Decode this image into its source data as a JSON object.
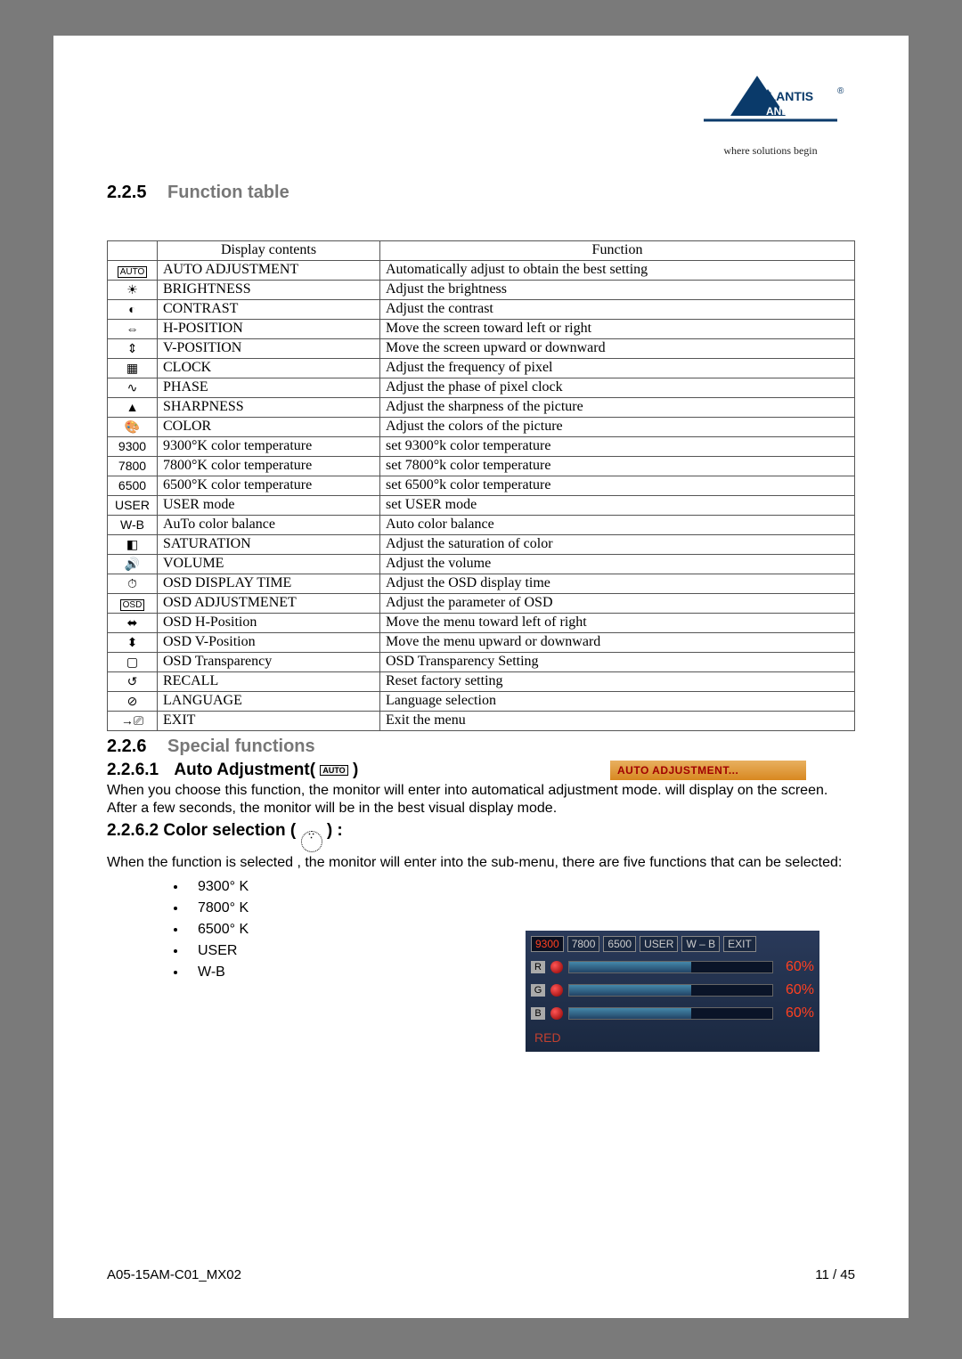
{
  "logo": {
    "brand": "ATLANTIS",
    "sub": "LAND",
    "tagline": "where solutions begin",
    "color": "#0a3a6a"
  },
  "section225": {
    "num": "2.2.5",
    "title": "Function table"
  },
  "table": {
    "header": {
      "icon": "",
      "display": "Display contents",
      "func": "Function"
    },
    "rows": [
      {
        "iconType": "boxed",
        "iconText": "AUTO",
        "display": "AUTO ADJUSTMENT",
        "func": "Automatically adjust to obtain the best setting"
      },
      {
        "iconType": "glyph",
        "iconText": "☀",
        "display": "BRIGHTNESS",
        "func": "Adjust the brightness"
      },
      {
        "iconType": "glyph",
        "iconText": "◐",
        "display": "CONTRAST",
        "func": "Adjust the contrast"
      },
      {
        "iconType": "glyph",
        "iconText": "⇔",
        "display": "H-POSITION",
        "func": "Move the screen toward left or right"
      },
      {
        "iconType": "glyph",
        "iconText": "⇕",
        "display": "V-POSITION",
        "func": "Move the screen upward or downward"
      },
      {
        "iconType": "glyph",
        "iconText": "▦",
        "display": "CLOCK",
        "func": "Adjust the frequency of pixel"
      },
      {
        "iconType": "glyph",
        "iconText": "∿",
        "display": "PHASE",
        "func": "Adjust the phase of pixel clock"
      },
      {
        "iconType": "glyph",
        "iconText": "▲",
        "display": "SHARPNESS",
        "func": "Adjust the sharpness of the picture"
      },
      {
        "iconType": "glyph",
        "iconText": "🎨",
        "display": "COLOR",
        "func": "Adjust the colors of the picture"
      },
      {
        "iconType": "text",
        "iconText": "9300",
        "display": "9300°K color temperature",
        "func": "set 9300°k color temperature"
      },
      {
        "iconType": "text",
        "iconText": "7800",
        "display": "7800°K color temperature",
        "func": "set 7800°k color temperature"
      },
      {
        "iconType": "text",
        "iconText": "6500",
        "display": "6500°K color temperature",
        "func": "set 6500°k color temperature"
      },
      {
        "iconType": "text",
        "iconText": "USER",
        "display": "USER mode",
        "func": "set USER mode"
      },
      {
        "iconType": "text",
        "iconText": "W-B",
        "display": "AuTo color balance",
        "func": "Auto color balance"
      },
      {
        "iconType": "glyph",
        "iconText": "◧",
        "display": "SATURATION",
        "func": "Adjust the saturation of color"
      },
      {
        "iconType": "glyph",
        "iconText": "🔊",
        "display": "VOLUME",
        "func": "Adjust the volume"
      },
      {
        "iconType": "glyph",
        "iconText": "⏱",
        "display": "OSD DISPLAY TIME",
        "func": "Adjust the OSD display time"
      },
      {
        "iconType": "boxed",
        "iconText": "OSD",
        "display": "OSD ADJUSTMENET",
        "func": "Adjust the parameter of OSD"
      },
      {
        "iconType": "glyph",
        "iconText": "⬌",
        "display": "OSD H-Position",
        "func": "Move the menu toward left of right"
      },
      {
        "iconType": "glyph",
        "iconText": "⬍",
        "display": "OSD V-Position",
        "func": "Move the menu upward or downward"
      },
      {
        "iconType": "glyph",
        "iconText": "▢",
        "display": "OSD Transparency",
        "func": "OSD Transparency Setting"
      },
      {
        "iconType": "glyph",
        "iconText": "↺",
        "display": "RECALL",
        "func": "Reset factory setting"
      },
      {
        "iconType": "glyph",
        "iconText": "⊘",
        "display": "LANGUAGE",
        "func": "Language selection"
      },
      {
        "iconType": "glyph",
        "iconText": "→⎚",
        "display": "EXIT",
        "func": "Exit the menu"
      }
    ]
  },
  "section226": {
    "num": "2.2.6",
    "title": "Special functions"
  },
  "sub2261": {
    "num": "2.2.6.1",
    "title": "Auto Adjustment(",
    "titleEnd": ")",
    "bar": "AUTO ADJUSTMENT...",
    "text": "When you choose this function, the monitor will enter into automatical adjustment mode.  will display on the screen. After a few seconds, the monitor will be in the best visual display mode."
  },
  "sub2262": {
    "num": "2.2.6.2",
    "title": "Color selection (",
    "titleEnd": ") :",
    "text": "When the function is selected , the monitor will  enter into the sub-menu, there are five functions that can be  selected:",
    "options": [
      "9300° K",
      "7800° K",
      "6500° K",
      "USER",
      "W-B"
    ]
  },
  "osd": {
    "tabs": [
      "9300",
      "7800",
      "6500",
      "USER",
      "W – B",
      "EXIT"
    ],
    "activeTab": 0,
    "channels": [
      {
        "label": "R",
        "pct": "60%",
        "fill": 60
      },
      {
        "label": "G",
        "pct": "60%",
        "fill": 60
      },
      {
        "label": "B",
        "pct": "60%",
        "fill": 60
      }
    ],
    "footer": "RED"
  },
  "footer": {
    "left": "A05-15AM-C01_MX02",
    "right": "11 / 45"
  }
}
